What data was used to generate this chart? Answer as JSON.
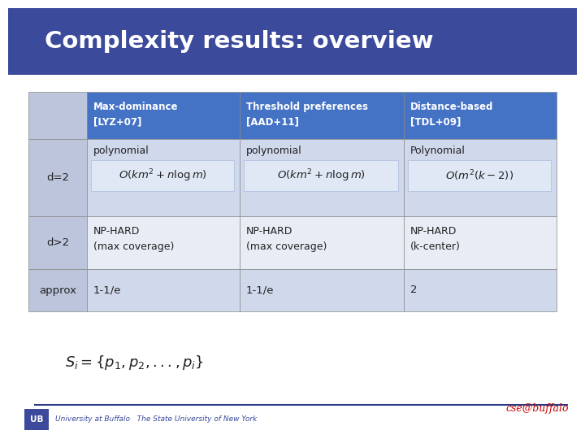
{
  "title": "Complexity results: overview",
  "title_bg_color": "#3B4A9B",
  "title_text_color": "#FFFFFF",
  "slide_bg_color": "#FFFFFF",
  "table_header_bg": "#4472C4",
  "table_header_text": "#FFFFFF",
  "table_row_bg_light": "#D0D8EC",
  "table_row_bg_white": "#E8ECF5",
  "table_col0_bg": "#BCC5DC",
  "col_headers": [
    "",
    "Max-dominance\n[LYZ+07]",
    "Threshold preferences\n[AAD+11]",
    "Distance-based\n[TDL+09]"
  ],
  "rows": [
    [
      "d=2",
      "polynomial",
      "polynomial",
      "Polynomial"
    ],
    [
      "d>2",
      "NP-HARD\n(max coverage)",
      "NP-HARD\n(max coverage)",
      "NP-HARD\n(k-center)"
    ],
    [
      "approx",
      "1-1/e",
      "1-1/e",
      "2"
    ]
  ],
  "math_row0_col1": "$O(km^2 + n\\log m)$",
  "math_row0_col2": "$O(km^2 + n\\log m)$",
  "math_row0_col3": "$O(m^2(k-2))$",
  "footer_formula": "$S_i = \\{p_1, p_2, ..., p_i\\}$",
  "footer_logo_text": "University at Buffalo   The State University of New York",
  "footer_brand": "cse@buffalo",
  "footer_line_color": "#2E3A87",
  "body_text_color": "#222222",
  "math_box_bg": "#E0E8F5"
}
